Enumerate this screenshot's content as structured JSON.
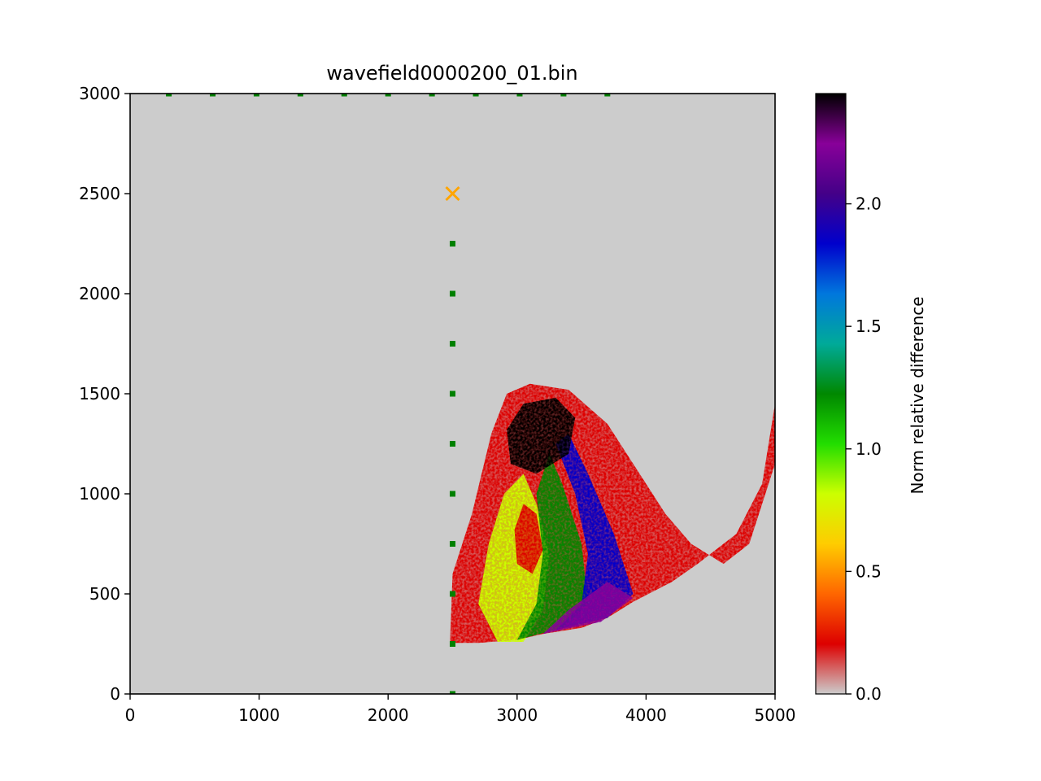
{
  "chart_data": {
    "type": "heatmap",
    "title": "wavefield0000200_01.bin",
    "xlabel": "",
    "ylabel": "",
    "xlim": [
      0,
      5000
    ],
    "ylim": [
      0,
      3000
    ],
    "x_ticks": [
      0,
      1000,
      2000,
      3000,
      4000,
      5000
    ],
    "y_ticks": [
      0,
      500,
      1000,
      1500,
      2000,
      2500,
      3000
    ],
    "background_color": "#cccccc",
    "colorbar": {
      "label": "Norm relative difference",
      "range": [
        0.0,
        2.45
      ],
      "ticks": [
        "0.0",
        "0.5",
        "1.0",
        "1.5",
        "2.0"
      ],
      "colormap": "nipy_spectral_r",
      "colors": [
        "#cccccc",
        "#dd0000",
        "#ff6600",
        "#ffcc00",
        "#ccff00",
        "#22dd00",
        "#008800",
        "#00aa99",
        "#0077dd",
        "#0000cc",
        "#440088",
        "#880099",
        "#000000"
      ]
    },
    "source": {
      "x": 2500,
      "y": 2500,
      "marker": "x",
      "color": "#ffa500"
    },
    "receivers": {
      "color": "#008000",
      "top_row": [
        {
          "x": 300,
          "y": 3000
        },
        {
          "x": 640,
          "y": 3000
        },
        {
          "x": 980,
          "y": 3000
        },
        {
          "x": 1320,
          "y": 3000
        },
        {
          "x": 1660,
          "y": 3000
        },
        {
          "x": 2000,
          "y": 3000
        },
        {
          "x": 2340,
          "y": 3000
        },
        {
          "x": 2680,
          "y": 3000
        },
        {
          "x": 3020,
          "y": 3000
        },
        {
          "x": 3360,
          "y": 3000
        },
        {
          "x": 3700,
          "y": 3000
        }
      ],
      "vertical_line": [
        {
          "x": 2500,
          "y": 2250
        },
        {
          "x": 2500,
          "y": 2000
        },
        {
          "x": 2500,
          "y": 1750
        },
        {
          "x": 2500,
          "y": 1500
        },
        {
          "x": 2500,
          "y": 1250
        },
        {
          "x": 2500,
          "y": 1000
        },
        {
          "x": 2500,
          "y": 750
        },
        {
          "x": 2500,
          "y": 500
        },
        {
          "x": 2500,
          "y": 250
        },
        {
          "x": 2500,
          "y": 0
        }
      ]
    },
    "field_regions": [
      {
        "name": "main-wavefront-envelope",
        "value": 0.3,
        "polygon": [
          [
            1950,
            255
          ],
          [
            2480,
            255
          ],
          [
            2500,
            600
          ],
          [
            2650,
            900
          ],
          [
            2800,
            1300
          ],
          [
            2920,
            1500
          ],
          [
            3100,
            1550
          ],
          [
            3400,
            1520
          ],
          [
            3700,
            1350
          ],
          [
            3950,
            1100
          ],
          [
            4150,
            900
          ],
          [
            4350,
            750
          ],
          [
            4600,
            650
          ],
          [
            4800,
            750
          ],
          [
            5000,
            1150
          ],
          [
            5000,
            1450
          ],
          [
            4900,
            1050
          ],
          [
            4700,
            800
          ],
          [
            4400,
            650
          ],
          [
            4200,
            560
          ],
          [
            3900,
            460
          ],
          [
            3700,
            380
          ],
          [
            3500,
            330
          ],
          [
            3200,
            300
          ],
          [
            3000,
            270
          ],
          [
            2700,
            255
          ]
        ]
      },
      {
        "name": "yellow-green-core",
        "value": 0.85,
        "polygon": [
          [
            2850,
            260
          ],
          [
            3050,
            260
          ],
          [
            3200,
            420
          ],
          [
            3250,
            700
          ],
          [
            3150,
            950
          ],
          [
            3050,
            1100
          ],
          [
            2900,
            1000
          ],
          [
            2780,
            750
          ],
          [
            2700,
            450
          ]
        ]
      },
      {
        "name": "green-band",
        "value": 1.15,
        "polygon": [
          [
            3000,
            270
          ],
          [
            3350,
            330
          ],
          [
            3550,
            450
          ],
          [
            3500,
            750
          ],
          [
            3350,
            1050
          ],
          [
            3250,
            1200
          ],
          [
            3150,
            1000
          ],
          [
            3200,
            700
          ],
          [
            3150,
            450
          ]
        ]
      },
      {
        "name": "blue-band",
        "value": 1.85,
        "polygon": [
          [
            3300,
            320
          ],
          [
            3700,
            380
          ],
          [
            3900,
            500
          ],
          [
            3750,
            800
          ],
          [
            3550,
            1100
          ],
          [
            3400,
            1300
          ],
          [
            3300,
            1250
          ],
          [
            3450,
            1000
          ],
          [
            3550,
            700
          ],
          [
            3500,
            450
          ]
        ]
      },
      {
        "name": "dark-upper-core",
        "value": 2.4,
        "polygon": [
          [
            2950,
            1150
          ],
          [
            3150,
            1100
          ],
          [
            3400,
            1200
          ],
          [
            3450,
            1380
          ],
          [
            3300,
            1480
          ],
          [
            3050,
            1450
          ],
          [
            2920,
            1320
          ]
        ]
      },
      {
        "name": "dark-lower-band",
        "value": 2.3,
        "polygon": [
          [
            3200,
            300
          ],
          [
            3650,
            360
          ],
          [
            3900,
            480
          ],
          [
            3700,
            560
          ],
          [
            3400,
            420
          ]
        ]
      },
      {
        "name": "red-inner-ring",
        "value": 0.3,
        "polygon": [
          [
            3000,
            650
          ],
          [
            3120,
            600
          ],
          [
            3200,
            720
          ],
          [
            3150,
            900
          ],
          [
            3050,
            950
          ],
          [
            2980,
            820
          ]
        ]
      }
    ]
  }
}
